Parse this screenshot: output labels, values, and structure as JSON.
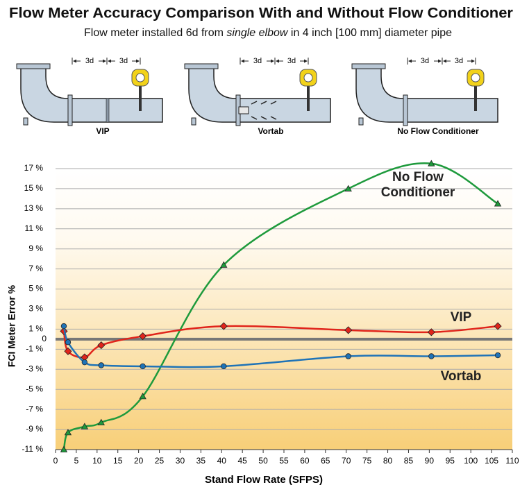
{
  "title": "Flow Meter Accuracy Comparison With and Without Flow Conditioner",
  "subtitle": [
    "Flow meter installed 6d from ",
    "single elbow",
    " in 4 inch [100 mm] diameter pipe"
  ],
  "diagrams": [
    {
      "label": "VIP",
      "dims": [
        "3d",
        "3d"
      ]
    },
    {
      "label": "Vortab",
      "dims": [
        "3d",
        "3d"
      ]
    },
    {
      "label": "No Flow Conditioner",
      "dims": [
        "3d",
        "3d"
      ]
    }
  ],
  "chart_data": {
    "type": "line",
    "xlabel": "Stand Flow Rate (SFPS)",
    "ylabel": "FCI Meter Error %",
    "x": [
      2,
      3,
      7,
      11,
      21,
      40.5,
      70.5,
      90.5,
      106.5
    ],
    "series": [
      {
        "name": "No Flow Conditioner",
        "color": "#1e9a3c",
        "marker": "triangle",
        "values": [
          -11,
          -9.3,
          -8.7,
          -8.3,
          -5.7,
          7.4,
          15,
          17.5,
          13.5
        ]
      },
      {
        "name": "VIP",
        "color": "#e0241b",
        "marker": "diamond",
        "values": [
          0.8,
          -1.2,
          -1.8,
          -0.6,
          0.3,
          1.3,
          0.9,
          0.7,
          1.3
        ]
      },
      {
        "name": "Vortab",
        "color": "#1f73b7",
        "marker": "circle",
        "values": [
          1.3,
          -0.3,
          -2.3,
          -2.6,
          -2.7,
          -2.7,
          -1.7,
          -1.7,
          -1.6
        ]
      }
    ],
    "xlim": [
      0,
      110
    ],
    "ylim": [
      -11,
      17
    ],
    "xticks": [
      0,
      5,
      10,
      15,
      20,
      25,
      30,
      35,
      40,
      45,
      50,
      55,
      60,
      65,
      70,
      75,
      80,
      85,
      90,
      95,
      100,
      105,
      110
    ],
    "yticks": [
      {
        "value": -11,
        "label": "-11 %"
      },
      {
        "value": -9,
        "label": "-9 %"
      },
      {
        "value": -7,
        "label": "-7 %"
      },
      {
        "value": -5,
        "label": "-5 %"
      },
      {
        "value": -3,
        "label": "-3 %"
      },
      {
        "value": -1,
        "label": "-1 %"
      },
      0,
      {
        "value": 1,
        "label": "1 %"
      },
      {
        "value": 3,
        "label": "3 %"
      },
      {
        "value": 5,
        "label": "5 %"
      },
      {
        "value": 7,
        "label": "7 %"
      },
      {
        "value": 9,
        "label": "9 %"
      },
      {
        "value": 11,
        "label": "11 %"
      },
      {
        "value": 13,
        "label": "13 %"
      },
      {
        "value": 15,
        "label": "15 %"
      },
      {
        "value": 17,
        "label": "17 %"
      }
    ],
    "grid": true
  }
}
